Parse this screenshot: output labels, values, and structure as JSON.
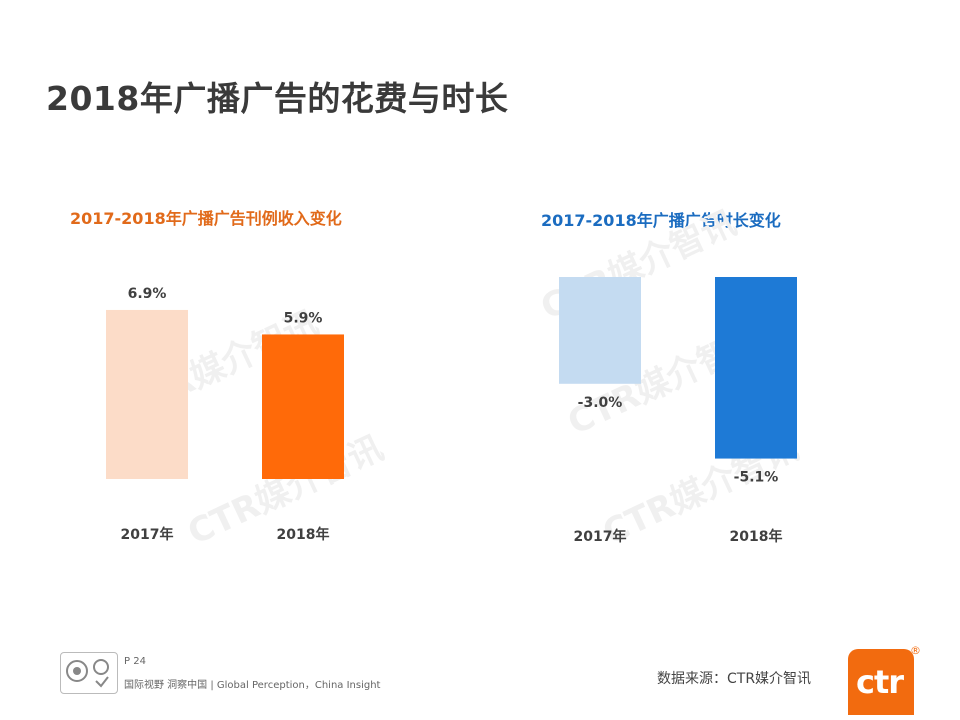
{
  "page": {
    "title": "2018年广播广告的花费与时长",
    "page_number": "P 24",
    "slogan": "国际视野  洞察中国 |  Global Perception，China Insight",
    "source": "数据来源：CTR媒介智讯",
    "logo_text": "ctr",
    "logo_mark": "®",
    "watermark": "CTR媒介智讯",
    "icons": [
      "certification-badge-icon",
      "ctr-logo"
    ]
  },
  "chart_data": [
    {
      "type": "bar",
      "title": "2017-2018年广播广告刊例收入变化",
      "categories": [
        "2017年",
        "2018年"
      ],
      "values": [
        6.9,
        5.9
      ],
      "value_labels": [
        "6.9%",
        "5.9%"
      ],
      "colors": [
        "#fcdcc8",
        "#ff6a09"
      ],
      "title_color": "#e16a1a",
      "grid": false
    },
    {
      "type": "bar",
      "title": "2017-2018年广播广告时长变化",
      "categories": [
        "2017年",
        "2018年"
      ],
      "values": [
        -3.0,
        -5.1
      ],
      "value_labels": [
        "-3.0%",
        "-5.1%"
      ],
      "colors": [
        "#c4dbf1",
        "#1e7ad6"
      ],
      "title_color": "#1b6cc0",
      "grid": false
    }
  ]
}
